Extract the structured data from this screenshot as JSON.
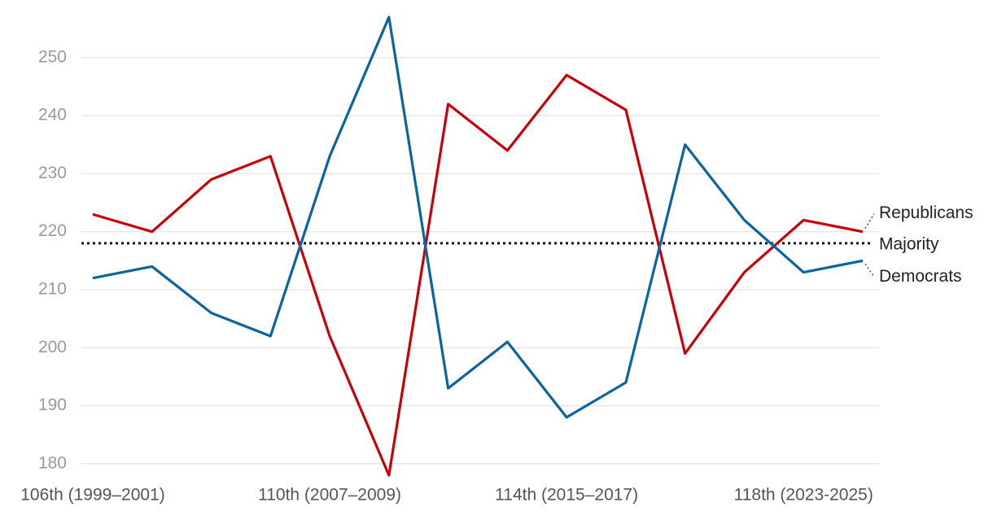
{
  "chart_data": {
    "type": "line",
    "categories": [
      "106th (1999–2001)",
      null,
      null,
      null,
      "110th (2007–2009)",
      null,
      null,
      null,
      "114th (2015–2017)",
      null,
      null,
      null,
      "118th (2023-2025)",
      null
    ],
    "series": [
      {
        "name": "Republicans",
        "color": "#c8000a",
        "values": [
          223,
          220,
          229,
          233,
          202,
          178,
          242,
          234,
          247,
          241,
          199,
          213,
          222,
          220
        ]
      },
      {
        "name": "Democrats",
        "color": "#0a64a0",
        "values": [
          212,
          214,
          206,
          202,
          233,
          257,
          193,
          201,
          188,
          194,
          235,
          222,
          213,
          215
        ]
      }
    ],
    "majority": {
      "label": "Majority",
      "value": 218
    },
    "ylim": [
      178,
      257
    ],
    "yticks": [
      180,
      190,
      200,
      210,
      220,
      230,
      240,
      250
    ],
    "grid": true
  }
}
